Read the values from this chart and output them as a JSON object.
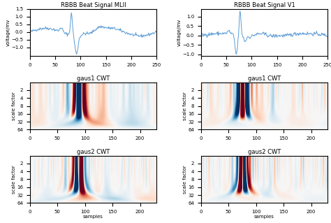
{
  "title_mlii": "RBBB Beat Signal MLII",
  "title_v1": "RBBB Beat Signal V1",
  "title_gaus1": "gaus1 CWT",
  "title_gaus2": "gaus2 CWT",
  "ylabel_signal": "voltage/mv",
  "ylabel_cwt": "scale factor",
  "xlabel_cwt": "samples",
  "signal_color": "#5b9bd5",
  "signal_xlim": [
    0,
    250
  ],
  "cwt_xlim": [
    0,
    230
  ],
  "cwt_xticks": [
    0,
    50,
    100,
    150,
    200
  ],
  "cwt_yticks": [
    2,
    4,
    8,
    16,
    32,
    64
  ],
  "signal_yticks_mlii": [
    -1.0,
    -0.5,
    0.0,
    0.5,
    1.0,
    1.5
  ],
  "signal_yticks_v1": [
    -1.0,
    -0.5,
    0.0,
    0.5,
    1.0
  ],
  "background_color": "#ffffff",
  "cmap": "RdBu_r",
  "n_samples": 250,
  "n_scales": 64
}
